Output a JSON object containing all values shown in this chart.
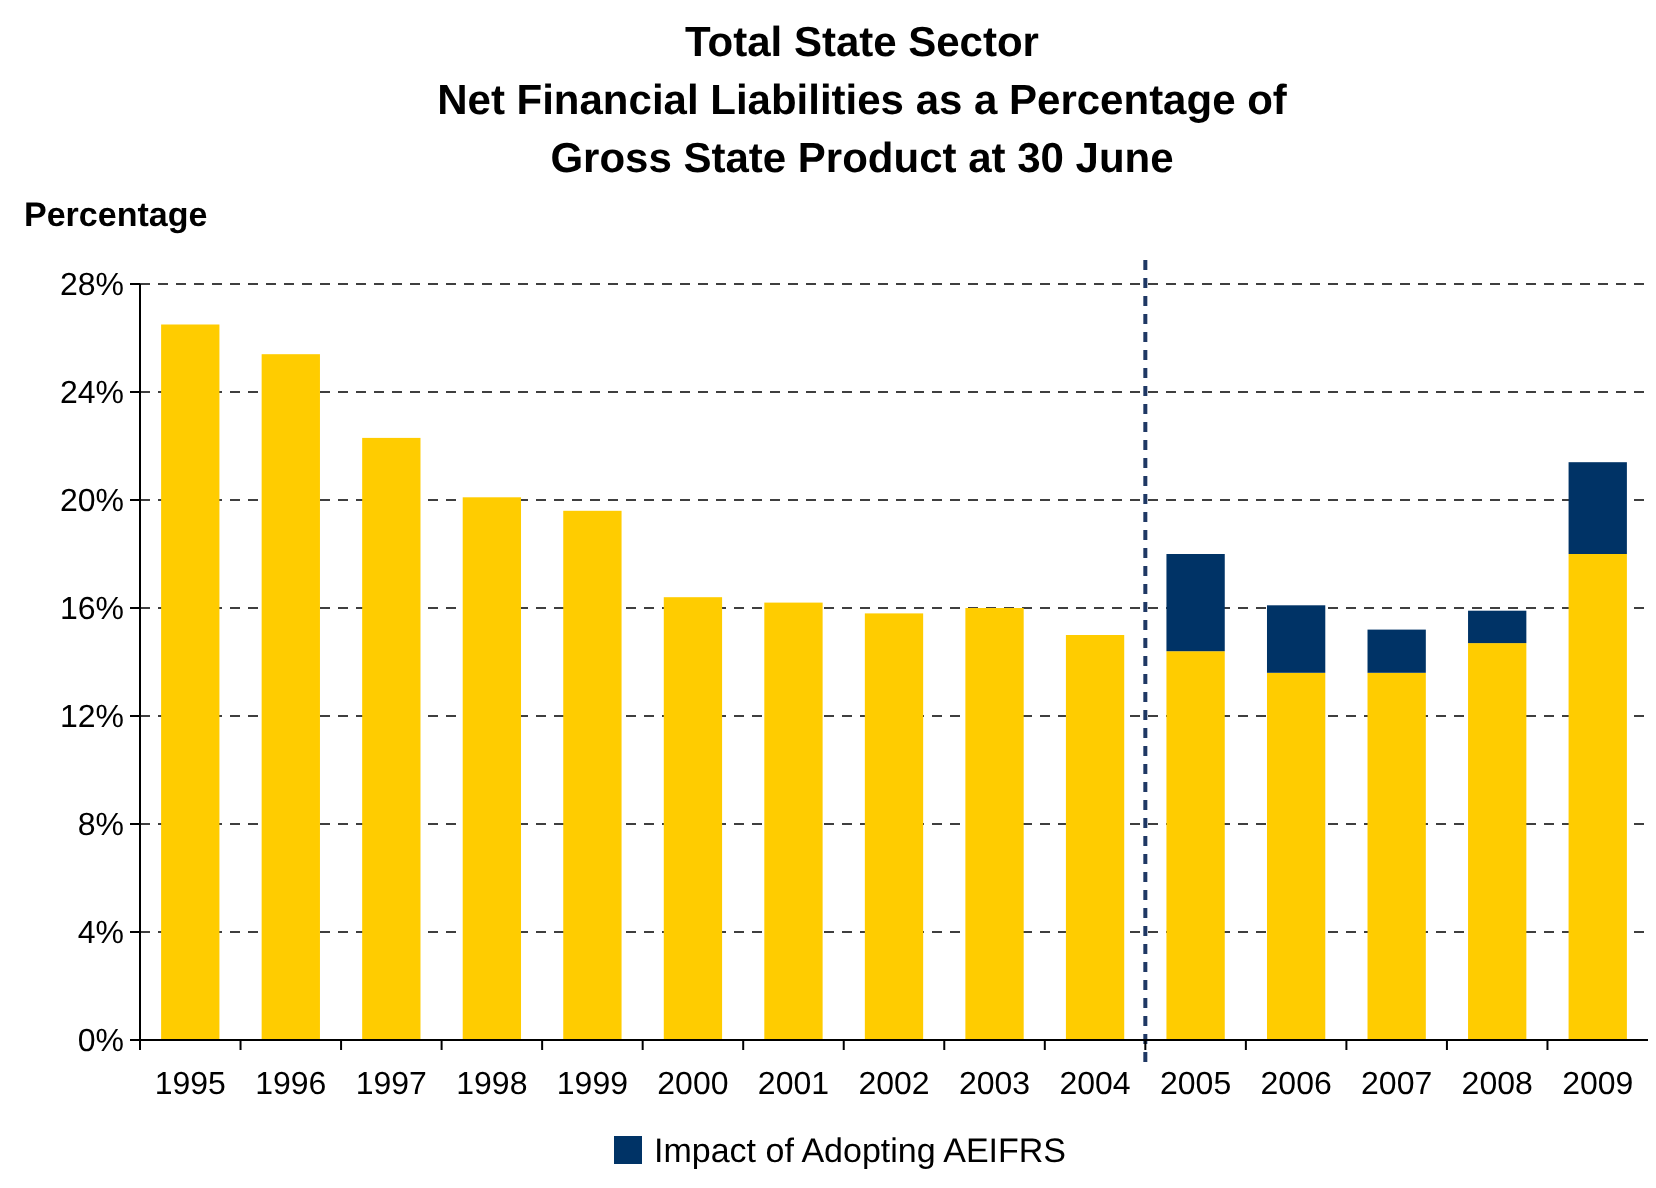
{
  "chart_data": {
    "type": "bar",
    "title": "Total State Sector\nNet Financial Liabilities as a Percentage of\nGross State Product at 30 June",
    "ylabel": "Percentage",
    "categories": [
      "1995",
      "1996",
      "1997",
      "1998",
      "1999",
      "2000",
      "2001",
      "2002",
      "2003",
      "2004",
      "2005",
      "2006",
      "2007",
      "2008",
      "2009"
    ],
    "stacked": true,
    "series": [
      {
        "color": "#ffcc00",
        "values": [
          26.5,
          25.4,
          22.3,
          20.1,
          19.6,
          16.4,
          16.2,
          15.8,
          16.0,
          15.0,
          14.4,
          13.6,
          13.6,
          14.7,
          18.0
        ]
      },
      {
        "name": "Impact of Adopting AEIFRS",
        "color": "#003366",
        "values": [
          null,
          null,
          null,
          null,
          null,
          null,
          null,
          null,
          null,
          null,
          3.6,
          2.5,
          1.6,
          1.2,
          3.4
        ]
      }
    ],
    "ylim": [
      0,
      28
    ],
    "yticks": [
      {
        "value": 0,
        "label": "0%"
      },
      {
        "value": 4,
        "label": "4%"
      },
      {
        "value": 8,
        "label": "8%"
      },
      {
        "value": 12,
        "label": "12%"
      },
      {
        "value": 16,
        "label": "16%"
      },
      {
        "value": 20,
        "label": "20%"
      },
      {
        "value": 24,
        "label": "24%"
      },
      {
        "value": 28,
        "label": "28%"
      }
    ],
    "grid": "y",
    "legend": "bottom"
  }
}
